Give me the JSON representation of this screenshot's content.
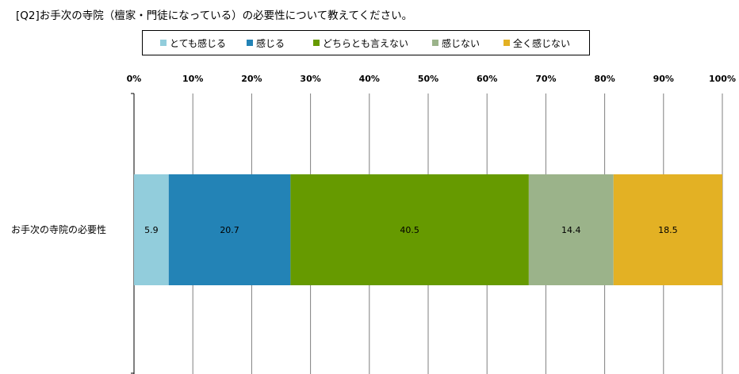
{
  "chart_data": {
    "type": "bar",
    "orientation": "horizontal",
    "stacked": true,
    "title": "[Q2]お手次の寺院（檀家・門徒になっている）の必要性について教えてください。",
    "categories": [
      "お手次の寺院の必要性"
    ],
    "series": [
      {
        "name": "とても感じる",
        "values": [
          5.9
        ],
        "color": "#92CDDC"
      },
      {
        "name": "感じる",
        "values": [
          20.7
        ],
        "color": "#2383B6"
      },
      {
        "name": "どちらとも言えない",
        "values": [
          40.5
        ],
        "color": "#669A00"
      },
      {
        "name": "感じない",
        "values": [
          14.4
        ],
        "color": "#9BB38A"
      },
      {
        "name": "全く感じない",
        "values": [
          18.5
        ],
        "color": "#E3B124"
      }
    ],
    "xticks": [
      "0%",
      "10%",
      "20%",
      "30%",
      "40%",
      "50%",
      "60%",
      "70%",
      "80%",
      "90%",
      "100%"
    ],
    "xlim": [
      0,
      100
    ],
    "grid": true,
    "legend_position": "top"
  }
}
